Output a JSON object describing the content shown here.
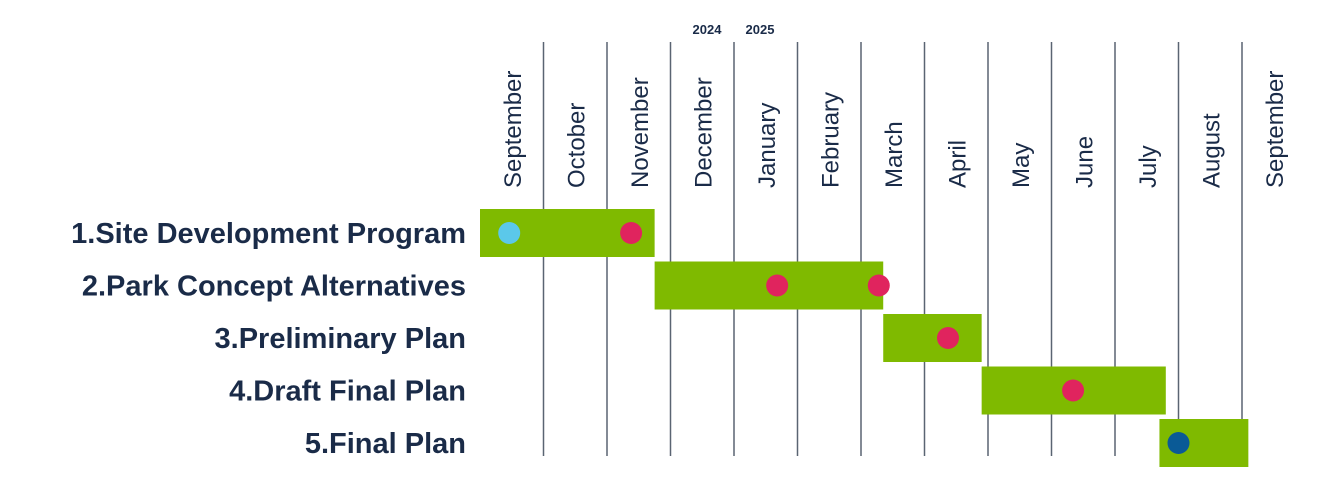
{
  "chart_data": {
    "type": "gantt",
    "categories": [
      "September",
      "October",
      "November",
      "December",
      "January",
      "February",
      "March",
      "April",
      "May",
      "June",
      "July",
      "August",
      "September"
    ],
    "year_labels": [
      "2024",
      "2025"
    ],
    "xlim": [
      0,
      13
    ],
    "bar_color": "#7fba00",
    "tasks": [
      {
        "name": "1.Site Development Program",
        "start": 0,
        "end": 2.75,
        "milestones": [
          {
            "at": 0.46,
            "color": "#5bc8ea"
          },
          {
            "at": 2.38,
            "color": "#e0245e"
          }
        ]
      },
      {
        "name": "2.Park Concept Alternatives",
        "start": 2.75,
        "end": 6.35,
        "milestones": [
          {
            "at": 4.68,
            "color": "#e0245e"
          },
          {
            "at": 6.28,
            "color": "#e0245e"
          }
        ]
      },
      {
        "name": "3.Preliminary Plan",
        "start": 6.35,
        "end": 7.9,
        "milestones": [
          {
            "at": 7.37,
            "color": "#e0245e"
          }
        ]
      },
      {
        "name": "4.Draft Final Plan",
        "start": 7.9,
        "end": 10.8,
        "milestones": [
          {
            "at": 9.34,
            "color": "#e0245e"
          }
        ]
      },
      {
        "name": "5.Final Plan",
        "start": 10.7,
        "end": 12.1,
        "milestones": [
          {
            "at": 11.0,
            "color": "#0a5a96"
          }
        ]
      }
    ]
  }
}
